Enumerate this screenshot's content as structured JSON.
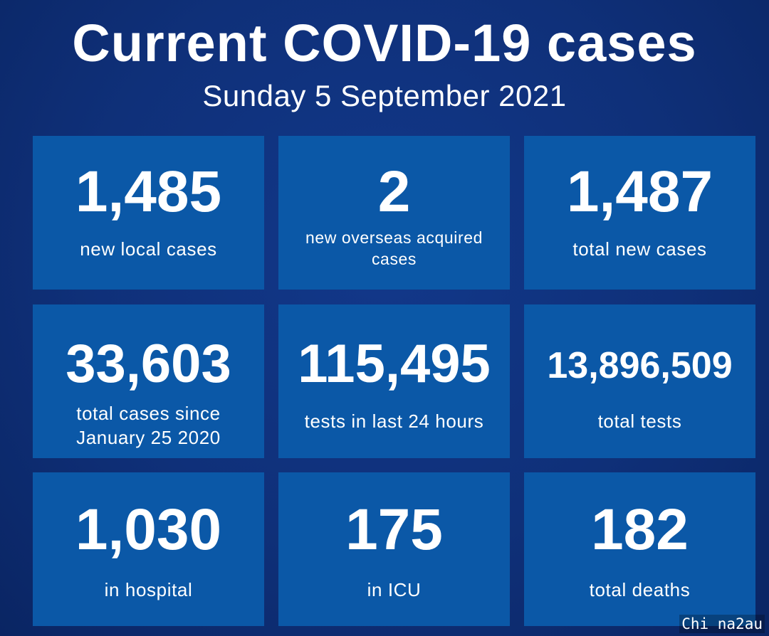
{
  "header": {
    "title": "Current COVID-19 cases",
    "subtitle": "Sunday 5 September 2021"
  },
  "tiles": [
    {
      "value": "1,485",
      "label": "new local cases"
    },
    {
      "value": "2",
      "label": "new overseas acquired cases"
    },
    {
      "value": "1,487",
      "label": "total new cases"
    },
    {
      "value": "33,603",
      "label": "total cases since January 25 2020"
    },
    {
      "value": "115,495",
      "label": "tests in last 24 hours"
    },
    {
      "value": "13,896,509",
      "label": "total tests"
    },
    {
      "value": "1,030",
      "label": "in hospital"
    },
    {
      "value": "175",
      "label": "in ICU"
    },
    {
      "value": "182",
      "label": "total deaths"
    }
  ],
  "watermark": "Chi na2au",
  "colors": {
    "background": "#0f3079",
    "tile": "#0b58a7",
    "text": "#ffffff"
  }
}
